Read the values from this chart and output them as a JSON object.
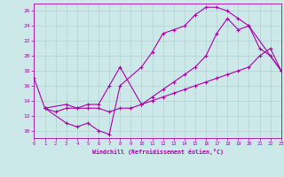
{
  "xlabel": "Windchill (Refroidissement éolien,°C)",
  "xlim": [
    0,
    23
  ],
  "ylim": [
    9,
    27
  ],
  "yticks": [
    10,
    12,
    14,
    16,
    18,
    20,
    22,
    24,
    26
  ],
  "xticks": [
    0,
    1,
    2,
    3,
    4,
    5,
    6,
    7,
    8,
    9,
    10,
    11,
    12,
    13,
    14,
    15,
    16,
    17,
    18,
    19,
    20,
    21,
    22,
    23
  ],
  "background_color": "#cce8e8",
  "line_color": "#aa00aa",
  "grid_color": "#aacccc",
  "line1_x": [
    0,
    1,
    3,
    4,
    5,
    6,
    7,
    8,
    10,
    11,
    12,
    13,
    14,
    15,
    16,
    17,
    18,
    19,
    20,
    21,
    22,
    23
  ],
  "line1_y": [
    17,
    13,
    11,
    10.5,
    11,
    10,
    9.5,
    16,
    18.5,
    20.5,
    23,
    23.5,
    24,
    25.5,
    26.5,
    26.5,
    26,
    25,
    24,
    21,
    20,
    18
  ],
  "line2_x": [
    1,
    2,
    3,
    4,
    5,
    6,
    7,
    8,
    9,
    10,
    11,
    12,
    13,
    14,
    15,
    16,
    17,
    18,
    19,
    20,
    21,
    22,
    23
  ],
  "line2_y": [
    13,
    12.5,
    13,
    13,
    13,
    13,
    12.5,
    13,
    13,
    13.5,
    14,
    14.5,
    15,
    15.5,
    16,
    16.5,
    17,
    17.5,
    18,
    18.5,
    20,
    21,
    18
  ],
  "line3_x": [
    1,
    3,
    4,
    5,
    6,
    7,
    8,
    10,
    11,
    12,
    13,
    14,
    15,
    16,
    17,
    18,
    19,
    20,
    23
  ],
  "line3_y": [
    13,
    13.5,
    13,
    13.5,
    13.5,
    16,
    18.5,
    13.5,
    14.5,
    15.5,
    16.5,
    17.5,
    18.5,
    20,
    23,
    25,
    23.5,
    24,
    18
  ]
}
